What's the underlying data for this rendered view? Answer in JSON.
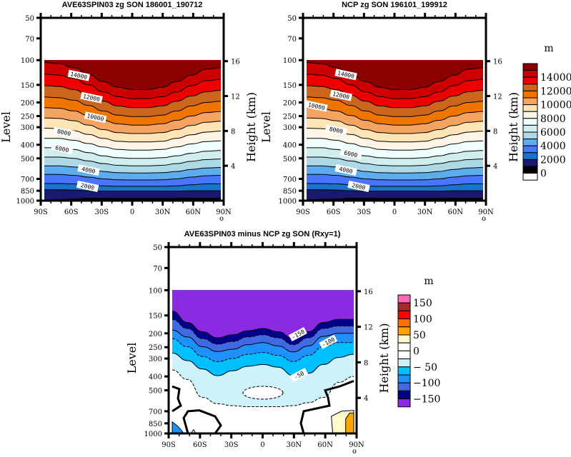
{
  "chart_data": [
    {
      "type": "heatmap",
      "subtype": "filled-contour",
      "title": "AVE63SPIN03 zg SON 186001_190712",
      "xlabel": "",
      "ylabel": "Level",
      "ylabel_right": "Height (km)",
      "x_ticks": [
        "90S",
        "60S",
        "30S",
        "0",
        "30N",
        "60N",
        "90N"
      ],
      "x_values": [
        -90,
        -60,
        -30,
        0,
        30,
        60,
        90
      ],
      "y_ticks": [
        "50",
        "70",
        "100",
        "150",
        "200",
        "250",
        "300",
        "400",
        "500",
        "700",
        "850",
        "1000"
      ],
      "y_values": [
        50,
        70,
        100,
        150,
        200,
        250,
        300,
        400,
        500,
        700,
        850,
        1000
      ],
      "y_right_ticks": [
        "16",
        "12",
        "8",
        "4"
      ],
      "ylim": [
        1000,
        50
      ],
      "xlim": [
        -90,
        90
      ],
      "y_scale": "log-pressure",
      "data_top_pressure": 100,
      "units": "m",
      "levels": [
        0,
        1000,
        2000,
        3000,
        4000,
        5000,
        6000,
        7000,
        8000,
        9000,
        10000,
        11000,
        12000,
        13000,
        14000,
        15000
      ],
      "contour_labels": [
        {
          "text": "14000",
          "lat": -55,
          "p": 130
        },
        {
          "text": "12000",
          "lat": -42,
          "p": 187
        },
        {
          "text": "10000",
          "lat": -38,
          "p": 258
        },
        {
          "text": "8000",
          "lat": -70,
          "p": 330
        },
        {
          "text": "6000",
          "lat": -72,
          "p": 432
        },
        {
          "text": "4000",
          "lat": -45,
          "p": 612
        },
        {
          "text": "2000",
          "lat": -46,
          "p": 800
        }
      ],
      "contour_lines_pressure": {
        "lats": [
          -90,
          -75,
          -60,
          -45,
          -30,
          -15,
          0,
          15,
          30,
          45,
          60,
          75,
          90
        ],
        "lines": [
          [
            990,
            985,
            975,
            960,
            960,
            962,
            962,
            962,
            962,
            962,
            960,
            960,
            960
          ],
          [
            835,
            835,
            840,
            850,
            855,
            855,
            855,
            855,
            855,
            855,
            850,
            850,
            850
          ],
          [
            755,
            755,
            760,
            770,
            785,
            790,
            790,
            790,
            790,
            785,
            770,
            760,
            760
          ],
          [
            650,
            650,
            660,
            680,
            700,
            710,
            712,
            712,
            710,
            700,
            680,
            665,
            660
          ],
          [
            565,
            565,
            575,
            595,
            620,
            632,
            635,
            635,
            632,
            620,
            600,
            585,
            580
          ],
          [
            490,
            490,
            500,
            522,
            545,
            560,
            565,
            565,
            560,
            545,
            525,
            510,
            505
          ],
          [
            420,
            420,
            432,
            455,
            480,
            495,
            500,
            500,
            495,
            480,
            460,
            445,
            440
          ],
          [
            360,
            360,
            372,
            392,
            415,
            432,
            437,
            437,
            432,
            415,
            395,
            380,
            375
          ],
          [
            305,
            307,
            318,
            338,
            360,
            378,
            382,
            382,
            378,
            360,
            340,
            325,
            320
          ],
          [
            258,
            260,
            270,
            290,
            312,
            328,
            333,
            333,
            328,
            312,
            292,
            277,
            272
          ],
          [
            218,
            220,
            230,
            248,
            268,
            284,
            290,
            290,
            284,
            268,
            250,
            236,
            232
          ],
          [
            183,
            185,
            193,
            210,
            230,
            246,
            252,
            252,
            246,
            230,
            212,
            200,
            196
          ],
          [
            152,
            154,
            162,
            178,
            196,
            212,
            218,
            218,
            212,
            196,
            180,
            168,
            164
          ],
          [
            126,
            128,
            135,
            150,
            168,
            182,
            188,
            188,
            182,
            168,
            152,
            140,
            137
          ],
          [
            104,
            106,
            113,
            126,
            142,
            156,
            162,
            162,
            156,
            142,
            128,
            116,
            113
          ]
        ]
      },
      "colors": [
        "#000000",
        "#191970",
        "#1874CD",
        "#4876FF",
        "#5CACEE",
        "#ADD8E6",
        "#D1EEEE",
        "#F0FFFF",
        "#FFF5E6",
        "#FFE4B5",
        "#F4A460",
        "#EE7600",
        "#CD661D",
        "#EE0000",
        "#CC0000",
        "#8B0000"
      ]
    },
    {
      "type": "heatmap",
      "subtype": "filled-contour",
      "title": "NCP zg SON 196101_199912",
      "xlabel": "",
      "ylabel": "Level",
      "ylabel_right": "Height (km)",
      "x_ticks": [
        "90S",
        "60S",
        "30S",
        "0",
        "30N",
        "60N",
        "90N"
      ],
      "x_values": [
        -90,
        -60,
        -30,
        0,
        30,
        60,
        90
      ],
      "y_ticks": [
        "50",
        "70",
        "100",
        "150",
        "200",
        "250",
        "300",
        "400",
        "500",
        "700",
        "850",
        "1000"
      ],
      "y_values": [
        50,
        70,
        100,
        150,
        200,
        250,
        300,
        400,
        500,
        700,
        850,
        1000
      ],
      "y_right_ticks": [
        "16",
        "12",
        "8",
        "4"
      ],
      "ylim": [
        1000,
        50
      ],
      "xlim": [
        -90,
        90
      ],
      "y_scale": "log-pressure",
      "data_top_pressure": 100,
      "units": "m",
      "contour_labels": [
        {
          "text": "14000",
          "lat": -50,
          "p": 128
        },
        {
          "text": "12000",
          "lat": -55,
          "p": 180
        },
        {
          "text": "10000",
          "lat": -80,
          "p": 215
        },
        {
          "text": "8000",
          "lat": -60,
          "p": 318
        },
        {
          "text": "6000",
          "lat": -45,
          "p": 470
        },
        {
          "text": "4000",
          "lat": -50,
          "p": 612
        },
        {
          "text": "2000",
          "lat": -37,
          "p": 800
        }
      ],
      "contour_lines_pressure": {
        "lats": [
          -90,
          -75,
          -60,
          -45,
          -30,
          -15,
          0,
          15,
          30,
          45,
          60,
          75,
          90
        ],
        "lines": [
          [
            985,
            980,
            975,
            960,
            960,
            962,
            962,
            962,
            962,
            962,
            960,
            960,
            960
          ],
          [
            835,
            835,
            840,
            850,
            855,
            855,
            855,
            855,
            855,
            855,
            850,
            850,
            850
          ],
          [
            755,
            755,
            760,
            770,
            785,
            790,
            790,
            790,
            790,
            785,
            770,
            760,
            760
          ],
          [
            650,
            650,
            660,
            680,
            700,
            710,
            712,
            712,
            710,
            700,
            680,
            665,
            660
          ],
          [
            565,
            565,
            575,
            595,
            620,
            632,
            635,
            635,
            632,
            620,
            600,
            585,
            580
          ],
          [
            490,
            490,
            500,
            522,
            545,
            560,
            565,
            565,
            560,
            545,
            525,
            510,
            505
          ],
          [
            420,
            420,
            432,
            455,
            480,
            495,
            500,
            500,
            495,
            480,
            460,
            445,
            440
          ],
          [
            360,
            360,
            372,
            392,
            415,
            432,
            437,
            437,
            432,
            415,
            395,
            380,
            375
          ],
          [
            305,
            307,
            318,
            338,
            360,
            378,
            382,
            382,
            378,
            360,
            340,
            325,
            320
          ],
          [
            258,
            260,
            270,
            290,
            312,
            328,
            333,
            333,
            328,
            312,
            292,
            277,
            272
          ],
          [
            218,
            220,
            230,
            248,
            268,
            284,
            290,
            290,
            284,
            268,
            250,
            236,
            232
          ],
          [
            183,
            185,
            193,
            210,
            230,
            246,
            252,
            252,
            246,
            230,
            212,
            200,
            196
          ],
          [
            152,
            154,
            162,
            178,
            196,
            212,
            218,
            218,
            212,
            196,
            180,
            168,
            164
          ],
          [
            126,
            128,
            135,
            150,
            168,
            182,
            188,
            188,
            182,
            168,
            152,
            140,
            137
          ],
          [
            104,
            106,
            113,
            126,
            142,
            156,
            162,
            162,
            156,
            142,
            128,
            116,
            113
          ]
        ]
      },
      "colors": [
        "#000000",
        "#191970",
        "#1874CD",
        "#4876FF",
        "#5CACEE",
        "#ADD8E6",
        "#D1EEEE",
        "#F0FFFF",
        "#FFF5E6",
        "#FFE4B5",
        "#F4A460",
        "#EE7600",
        "#CD661D",
        "#EE0000",
        "#CC0000",
        "#8B0000"
      ]
    },
    {
      "type": "heatmap",
      "subtype": "filled-contour",
      "title": "AVE63SPIN03 minus NCP zg SON (Rxy=1)",
      "xlabel": "",
      "ylabel": "Level",
      "ylabel_right": "Height (km)",
      "x_ticks": [
        "90S",
        "60S",
        "30S",
        "0",
        "30N",
        "60N",
        "90N"
      ],
      "x_values": [
        -90,
        -60,
        -30,
        0,
        30,
        60,
        90
      ],
      "y_ticks": [
        "50",
        "70",
        "100",
        "150",
        "200",
        "250",
        "300",
        "400",
        "500",
        "700",
        "850",
        "1000"
      ],
      "y_values": [
        50,
        70,
        100,
        150,
        200,
        250,
        300,
        400,
        500,
        700,
        850,
        1000
      ],
      "y_right_ticks": [
        "16",
        "12",
        "8",
        "4"
      ],
      "ylim": [
        1000,
        50
      ],
      "xlim": [
        -90,
        90
      ],
      "y_scale": "log-pressure",
      "data_top_pressure": 100,
      "units": "m",
      "pattern_correlation": "Rxy=1",
      "contour_labels": [
        {
          "text": "-150",
          "lat": 35,
          "p": 205
        },
        {
          "text": "-100",
          "lat": 65,
          "p": 232
        },
        {
          "text": "-50",
          "lat": 36,
          "p": 395
        }
      ],
      "bands": [
        {
          "from": -150,
          "to": -175,
          "color": "#8A2BE2",
          "top_p": [
            100,
            100,
            100,
            100,
            100,
            100,
            100,
            100,
            100,
            100,
            100,
            100,
            100
          ],
          "bot_p": [
            140,
            168,
            195,
            215,
            205,
            192,
            185,
            195,
            218,
            195,
            168,
            160,
            160
          ]
        },
        {
          "from": -125,
          "to": -150,
          "color": "#00008B",
          "bot_p": [
            160,
            185,
            218,
            238,
            228,
            212,
            205,
            215,
            240,
            215,
            185,
            178,
            178
          ]
        },
        {
          "from": -100,
          "to": -125,
          "color": "#4169E1",
          "bot_p": [
            190,
            212,
            248,
            268,
            258,
            240,
            232,
            245,
            270,
            245,
            210,
            200,
            200
          ]
        },
        {
          "from": -75,
          "to": -100,
          "color": "#1E90FF",
          "bot_p": [
            218,
            248,
            290,
            315,
            300,
            280,
            272,
            285,
            315,
            285,
            248,
            232,
            232
          ]
        },
        {
          "from": -50,
          "to": -75,
          "color": "#00BFFF",
          "bot_p": [
            275,
            310,
            355,
            395,
            365,
            340,
            330,
            345,
            395,
            380,
            330,
            295,
            280
          ]
        },
        {
          "from": -25,
          "to": -50,
          "color": "#CCF2FA",
          "bot_p": [
            360,
            420,
            560,
            620,
            640,
            650,
            650,
            650,
            640,
            610,
            560,
            440,
            400
          ]
        }
      ],
      "colorbar_colors": [
        "#8A2BE2",
        "#00008B",
        "#4169E1",
        "#1E90FF",
        "#00BFFF",
        "#CCF2FA",
        "#FFFFFF",
        "#FFFFFF",
        "#FFFACD",
        "#FFA500",
        "#FF7000",
        "#FF0000",
        "#A52A2A",
        "#FF69B4"
      ]
    }
  ],
  "colorbars": [
    {
      "title": "m",
      "axis_label": "Height (km)",
      "axis_ticks": [
        "16",
        "12",
        "8",
        "4"
      ],
      "labels": [
        "14000",
        "12000",
        "10000",
        "8000",
        "6000",
        "4000",
        "2000",
        "0"
      ],
      "colors_top_to_bottom": [
        "#8B0000",
        "#CC0000",
        "#EE0000",
        "#CD661D",
        "#EE7600",
        "#F4A460",
        "#FFE4B5",
        "#FFF5E6",
        "#F0FFFF",
        "#D1EEEE",
        "#ADD8E6",
        "#5CACEE",
        "#4876FF",
        "#1874CD",
        "#191970",
        "#000000",
        "#FFFFFF"
      ]
    },
    {
      "title": "m",
      "axis_label": "Height (km)",
      "axis_ticks": [
        "16",
        "12",
        "8",
        "4"
      ],
      "labels": [
        "150",
        "100",
        "50",
        "0",
        "− 50",
        "−100",
        "−150"
      ],
      "colors_top_to_bottom": [
        "#FF69B4",
        "#A52A2A",
        "#FF0000",
        "#FF7000",
        "#FFA500",
        "#FFFACD",
        "#FFFFFF",
        "#FFFFFF",
        "#CCF2FA",
        "#00BFFF",
        "#1E90FF",
        "#4169E1",
        "#00008B",
        "#8A2BE2"
      ]
    }
  ],
  "zero_contour_glyph": "o"
}
